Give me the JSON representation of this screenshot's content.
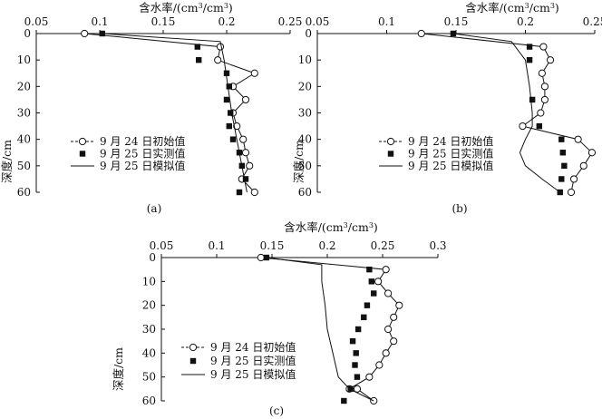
{
  "chart_data": [
    {
      "type": "line",
      "panel_label": "(a)",
      "xlabel_parts": [
        "含水率/(cm",
        "3",
        "/cm",
        "3",
        ")"
      ],
      "ylabel": "深度/cm",
      "x_ticks": [
        0.05,
        0.1,
        0.15,
        0.2,
        0.25
      ],
      "x_tick_labels": [
        "0.05",
        "0.1",
        "0.15",
        "0.2",
        "0.25"
      ],
      "xlim": [
        0.05,
        0.25
      ],
      "y_ticks": [
        0,
        10,
        20,
        30,
        40,
        50,
        60
      ],
      "y_tick_labels": [
        "0",
        "10",
        "20",
        "30",
        "40",
        "50",
        "60"
      ],
      "ylim": [
        0,
        60
      ],
      "y_inverted": true,
      "legend_position": "center-left",
      "series": [
        {
          "name": "9 月 24 日初始值",
          "marker": "open-circle",
          "line": "solid",
          "points": [
            [
              0.088,
              0
            ],
            [
              0.195,
              5
            ],
            [
              0.193,
              10
            ],
            [
              0.222,
              15
            ],
            [
              0.205,
              20
            ],
            [
              0.215,
              25
            ],
            [
              0.205,
              30
            ],
            [
              0.208,
              35
            ],
            [
              0.213,
              40
            ],
            [
              0.215,
              45
            ],
            [
              0.218,
              50
            ],
            [
              0.212,
              55
            ],
            [
              0.222,
              60
            ]
          ]
        },
        {
          "name": "9 月 25 日实测值",
          "marker": "filled-square",
          "line": "none",
          "points": [
            [
              0.102,
              0
            ],
            [
              0.177,
              5
            ],
            [
              0.178,
              10
            ],
            [
              0.2,
              15
            ],
            [
              0.202,
              20
            ],
            [
              0.2,
              25
            ],
            [
              0.203,
              30
            ],
            [
              0.202,
              35
            ],
            [
              0.205,
              40
            ],
            [
              0.21,
              45
            ],
            [
              0.212,
              50
            ],
            [
              0.215,
              55
            ],
            [
              0.21,
              60
            ]
          ]
        },
        {
          "name": "9 月 25 日模拟值",
          "marker": "none",
          "line": "solid",
          "points": [
            [
              0.102,
              0
            ],
            [
              0.195,
              3
            ],
            [
              0.198,
              10
            ],
            [
              0.201,
              20
            ],
            [
              0.204,
              30
            ],
            [
              0.208,
              40
            ],
            [
              0.212,
              50
            ],
            [
              0.216,
              60
            ]
          ]
        }
      ]
    },
    {
      "type": "line",
      "panel_label": "(b)",
      "xlabel_parts": [
        "含水率/(cm",
        "3",
        "/cm",
        "3",
        ")"
      ],
      "ylabel": "深度/cm",
      "x_ticks": [
        0.05,
        0.1,
        0.15,
        0.2,
        0.25
      ],
      "x_tick_labels": [
        "0.05",
        "0.1",
        "0.15",
        "0.2",
        "0.25"
      ],
      "xlim": [
        0.05,
        0.25
      ],
      "y_ticks": [
        0,
        10,
        20,
        30,
        40,
        50,
        60
      ],
      "y_tick_labels": [
        "0",
        "10",
        "20",
        "30",
        "40",
        "50",
        "60"
      ],
      "ylim": [
        0,
        60
      ],
      "y_inverted": true,
      "legend_position": "center-left",
      "series": [
        {
          "name": "9 月 24 日初始值",
          "marker": "open-circle",
          "line": "solid",
          "points": [
            [
              0.125,
              0
            ],
            [
              0.213,
              5
            ],
            [
              0.218,
              10
            ],
            [
              0.212,
              15
            ],
            [
              0.214,
              20
            ],
            [
              0.214,
              25
            ],
            [
              0.211,
              30
            ],
            [
              0.198,
              35
            ],
            [
              0.238,
              40
            ],
            [
              0.248,
              45
            ],
            [
              0.242,
              50
            ],
            [
              0.235,
              55
            ],
            [
              0.233,
              60
            ]
          ]
        },
        {
          "name": "9 月 25 日实测值",
          "marker": "filled-square",
          "line": "none",
          "points": [
            [
              0.148,
              0
            ],
            [
              0.203,
              5
            ],
            [
              0.203,
              10
            ],
            [
              0.205,
              25
            ],
            [
              0.21,
              35
            ],
            [
              0.226,
              40
            ],
            [
              0.227,
              45
            ],
            [
              0.228,
              50
            ],
            [
              0.226,
              55
            ],
            [
              0.225,
              60
            ]
          ]
        },
        {
          "name": "9 月 25 日模拟值",
          "marker": "none",
          "line": "solid",
          "points": [
            [
              0.148,
              0
            ],
            [
              0.19,
              3
            ],
            [
              0.2,
              10
            ],
            [
              0.203,
              20
            ],
            [
              0.205,
              30
            ],
            [
              0.205,
              35
            ],
            [
              0.2,
              40
            ],
            [
              0.196,
              45
            ],
            [
              0.2,
              50
            ],
            [
              0.212,
              55
            ],
            [
              0.225,
              60
            ]
          ]
        }
      ]
    },
    {
      "type": "line",
      "panel_label": "(c)",
      "xlabel_parts": [
        "含水率/(cm",
        "3",
        "/cm",
        "3",
        ")"
      ],
      "ylabel": "深度/cm",
      "x_ticks": [
        0.05,
        0.1,
        0.15,
        0.2,
        0.25,
        0.3
      ],
      "x_tick_labels": [
        "0.05",
        "0.1",
        "0.15",
        "0.2",
        "0.25",
        "0.3"
      ],
      "xlim": [
        0.05,
        0.3
      ],
      "y_ticks": [
        0,
        10,
        20,
        30,
        40,
        50,
        60
      ],
      "y_tick_labels": [
        "0",
        "10",
        "20",
        "30",
        "40",
        "50",
        "60"
      ],
      "ylim": [
        0,
        60
      ],
      "y_inverted": true,
      "legend_position": "bottom-left",
      "series": [
        {
          "name": "9 月 24 日初始值",
          "marker": "open-circle",
          "line": "solid",
          "points": [
            [
              0.14,
              0
            ],
            [
              0.253,
              5
            ],
            [
              0.246,
              10
            ],
            [
              0.255,
              15
            ],
            [
              0.265,
              20
            ],
            [
              0.26,
              25
            ],
            [
              0.255,
              30
            ],
            [
              0.26,
              35
            ],
            [
              0.253,
              40
            ],
            [
              0.247,
              45
            ],
            [
              0.238,
              50
            ],
            [
              0.22,
              55
            ],
            [
              0.227,
              55
            ],
            [
              0.242,
              60
            ]
          ]
        },
        {
          "name": "9 月 25 日实测值",
          "marker": "filled-square",
          "line": "none",
          "points": [
            [
              0.145,
              0
            ],
            [
              0.238,
              5
            ],
            [
              0.24,
              10
            ],
            [
              0.242,
              15
            ],
            [
              0.236,
              20
            ],
            [
              0.233,
              25
            ],
            [
              0.228,
              30
            ],
            [
              0.223,
              35
            ],
            [
              0.226,
              40
            ],
            [
              0.225,
              45
            ],
            [
              0.227,
              50
            ],
            [
              0.221,
              55
            ],
            [
              0.215,
              60
            ]
          ]
        },
        {
          "name": "9 月 25 日模拟值",
          "marker": "none",
          "line": "solid",
          "points": [
            [
              0.145,
              0
            ],
            [
              0.195,
              3
            ],
            [
              0.195,
              10
            ],
            [
              0.198,
              20
            ],
            [
              0.2,
              30
            ],
            [
              0.205,
              40
            ],
            [
              0.21,
              50
            ],
            [
              0.22,
              55
            ],
            [
              0.242,
              60
            ]
          ]
        }
      ]
    }
  ]
}
